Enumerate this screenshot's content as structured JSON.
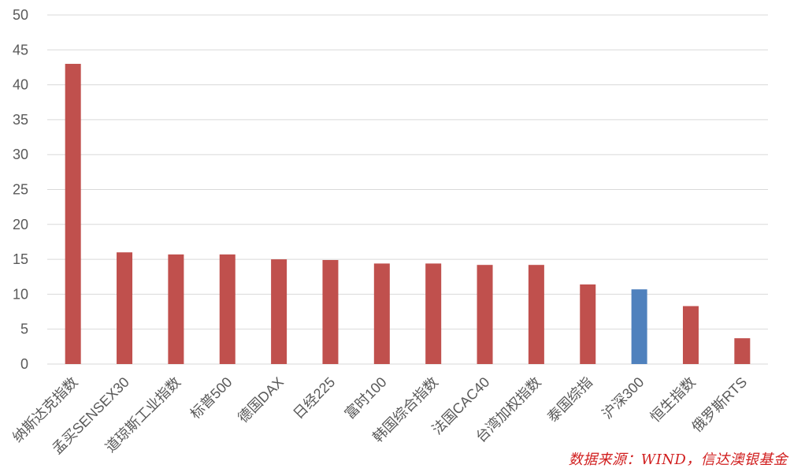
{
  "chart_data": {
    "type": "bar",
    "categories": [
      "纳斯达克指数",
      "孟买SENSEX30",
      "道琼斯工业指数",
      "标普500",
      "德国DAX",
      "日经225",
      "富时100",
      "韩国综合指数",
      "法国CAC40",
      "台湾加权指数",
      "泰国综指",
      "沪深300",
      "恒生指数",
      "俄罗斯RTS"
    ],
    "values": [
      43.0,
      16.0,
      15.7,
      15.7,
      15.0,
      14.9,
      14.4,
      14.4,
      14.2,
      14.2,
      11.4,
      10.7,
      8.3,
      3.7
    ],
    "bar_colors": [
      "#c0504d",
      "#c0504d",
      "#c0504d",
      "#c0504d",
      "#c0504d",
      "#c0504d",
      "#c0504d",
      "#c0504d",
      "#c0504d",
      "#c0504d",
      "#c0504d",
      "#4f81bd",
      "#c0504d",
      "#c0504d"
    ],
    "yticks": [
      "0",
      "5",
      "10",
      "15",
      "20",
      "25",
      "30",
      "35",
      "40",
      "45",
      "50"
    ],
    "ylim": [
      0,
      50
    ],
    "grid": true,
    "title": "",
    "xlabel": "",
    "ylabel": "",
    "source": "数据来源：WIND，信达澳银基金"
  },
  "colors": {
    "default_bar": "#c0504d",
    "highlight_bar": "#4f81bd",
    "gridline": "#d9d9d9",
    "axis_text": "#595959",
    "source_text": "#d11f1f"
  }
}
